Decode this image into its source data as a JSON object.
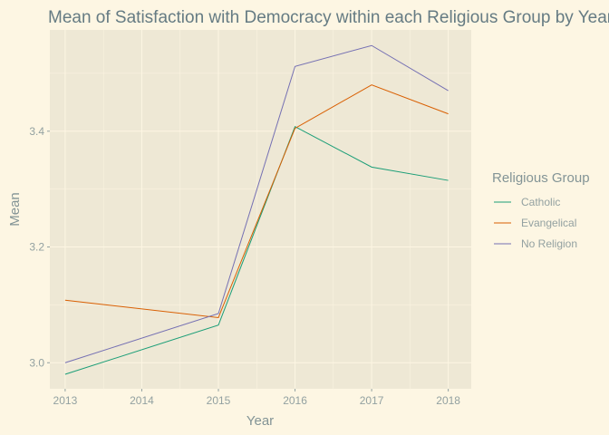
{
  "chart_data": {
    "type": "line",
    "title": "Mean of Satisfaction with Democracy within each Religious Group by Year",
    "xlabel": "Year",
    "ylabel": "Mean",
    "x": [
      2013,
      2015,
      2016,
      2017,
      2018
    ],
    "xticks": [
      "2013",
      "2014",
      "2015",
      "2016",
      "2017",
      "2018"
    ],
    "xlim": [
      2012.8,
      2018.3
    ],
    "yticks": [
      "3.0",
      "3.2",
      "3.4"
    ],
    "ylim": [
      2.955,
      3.575
    ],
    "grid": true,
    "legend_position": "right",
    "legend_title": "Religious Group",
    "series": [
      {
        "name": "Catholic",
        "color": "#1b9e77",
        "values": [
          2.98,
          3.065,
          3.408,
          3.338,
          3.315
        ]
      },
      {
        "name": "Evangelical",
        "color": "#d95f02",
        "values": [
          3.108,
          3.078,
          3.405,
          3.48,
          3.43
        ]
      },
      {
        "name": "No Religion",
        "color": "#7570b3",
        "values": [
          3.0,
          3.085,
          3.512,
          3.548,
          3.47
        ]
      }
    ],
    "colors": {
      "panel": "#eee8d5",
      "background": "#fdf6e3",
      "grid": "#fdf6e3"
    }
  }
}
